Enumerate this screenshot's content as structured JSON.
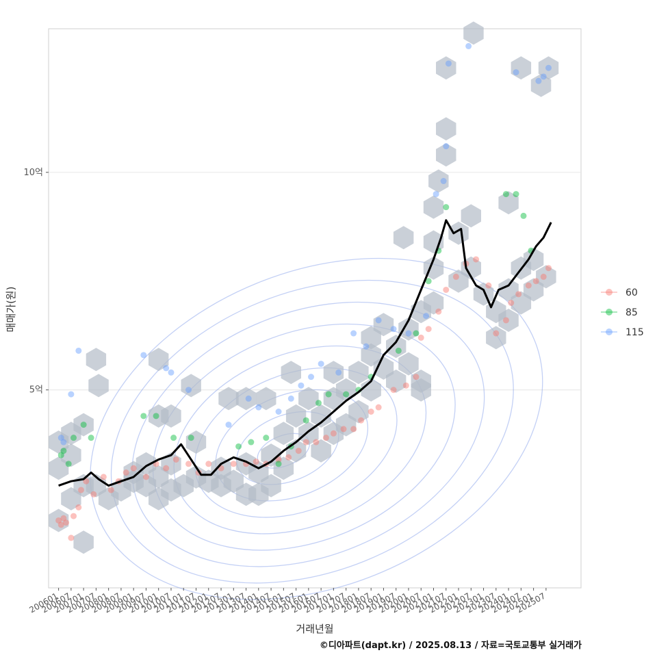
{
  "chart_data": {
    "type": "scatter",
    "xlabel": "거래년월",
    "ylabel": "매매가(원)",
    "caption": "©디아파트(dapt.kr) / 2025.08.13 / 자료=국토교통부 실거래가",
    "ylim": [
      0.45,
      13.3
    ],
    "y_unit": "억",
    "y_ticks": [
      {
        "value": 5,
        "label": "5억"
      },
      {
        "value": 10,
        "label": "10억"
      }
    ],
    "x_ticks": [
      "200601",
      "200607",
      "200701",
      "200707",
      "200801",
      "200807",
      "200901",
      "200907",
      "201001",
      "201007",
      "201101",
      "201107",
      "201201",
      "201207",
      "201301",
      "201307",
      "201401",
      "201407",
      "201501",
      "201507",
      "201601",
      "201607",
      "201701",
      "201707",
      "201801",
      "201807",
      "201901",
      "201907",
      "202001",
      "202007",
      "202101",
      "202107",
      "202201",
      "202207",
      "202301",
      "202307",
      "202401",
      "202407",
      "202501",
      "202507"
    ],
    "grid": true,
    "legend_position": "right",
    "colors": {
      "60": "#f8766d",
      "85": "#00ba38",
      "115": "#619cff",
      "trend": "#000000",
      "hex": "#b4bcc8",
      "contour": "#7a96e8"
    },
    "series": [
      {
        "name": "60",
        "points": [
          [
            2006.0,
            2.0
          ],
          [
            2006.1,
            1.9
          ],
          [
            2006.2,
            2.05
          ],
          [
            2006.3,
            1.95
          ],
          [
            2006.6,
            2.1
          ],
          [
            2006.8,
            2.3
          ],
          [
            2006.5,
            1.6
          ],
          [
            2006.9,
            2.7
          ],
          [
            2007.1,
            2.9
          ],
          [
            2007.4,
            2.6
          ],
          [
            2007.8,
            3.0
          ],
          [
            2008.1,
            2.7
          ],
          [
            2008.4,
            2.9
          ],
          [
            2008.7,
            3.1
          ],
          [
            2009.0,
            3.2
          ],
          [
            2009.5,
            3.0
          ],
          [
            2009.9,
            3.3
          ],
          [
            2010.3,
            3.2
          ],
          [
            2010.7,
            3.4
          ],
          [
            2011.2,
            3.3
          ],
          [
            2011.6,
            3.1
          ],
          [
            2012.0,
            3.3
          ],
          [
            2012.5,
            3.2
          ],
          [
            2013.0,
            3.3
          ],
          [
            2013.5,
            3.3
          ],
          [
            2013.9,
            3.35
          ],
          [
            2014.3,
            3.3
          ],
          [
            2014.8,
            3.4
          ],
          [
            2015.2,
            3.45
          ],
          [
            2015.6,
            3.6
          ],
          [
            2015.9,
            3.8
          ],
          [
            2016.3,
            3.8
          ],
          [
            2016.7,
            3.9
          ],
          [
            2017.0,
            4.0
          ],
          [
            2017.4,
            4.1
          ],
          [
            2017.8,
            4.1
          ],
          [
            2018.1,
            4.3
          ],
          [
            2018.5,
            4.5
          ],
          [
            2018.8,
            4.6
          ],
          [
            2019.4,
            5.0
          ],
          [
            2019.9,
            5.1
          ],
          [
            2020.3,
            5.3
          ],
          [
            2020.5,
            6.2
          ],
          [
            2020.8,
            6.4
          ],
          [
            2021.2,
            6.8
          ],
          [
            2021.5,
            7.3
          ],
          [
            2021.9,
            7.6
          ],
          [
            2022.3,
            7.9
          ],
          [
            2022.7,
            8.0
          ],
          [
            2023.2,
            7.4
          ],
          [
            2023.5,
            6.3
          ],
          [
            2023.9,
            6.6
          ],
          [
            2024.1,
            7.0
          ],
          [
            2024.4,
            7.2
          ],
          [
            2024.8,
            7.4
          ],
          [
            2025.1,
            7.5
          ],
          [
            2025.4,
            7.6
          ],
          [
            2025.6,
            7.8
          ]
        ]
      },
      {
        "name": "85",
        "points": [
          [
            2006.1,
            3.5
          ],
          [
            2006.2,
            3.6
          ],
          [
            2006.4,
            3.3
          ],
          [
            2006.6,
            3.9
          ],
          [
            2007.0,
            4.2
          ],
          [
            2007.3,
            3.9
          ],
          [
            2009.4,
            4.4
          ],
          [
            2009.9,
            4.4
          ],
          [
            2010.6,
            3.9
          ],
          [
            2011.3,
            3.9
          ],
          [
            2013.2,
            3.7
          ],
          [
            2013.7,
            3.8
          ],
          [
            2014.3,
            3.9
          ],
          [
            2014.8,
            3.3
          ],
          [
            2015.3,
            3.7
          ],
          [
            2015.9,
            4.3
          ],
          [
            2016.4,
            4.7
          ],
          [
            2016.8,
            4.9
          ],
          [
            2017.5,
            4.9
          ],
          [
            2018.0,
            5.0
          ],
          [
            2018.5,
            5.3
          ],
          [
            2019.6,
            5.9
          ],
          [
            2020.3,
            6.3
          ],
          [
            2020.8,
            7.5
          ],
          [
            2021.2,
            8.2
          ],
          [
            2021.5,
            9.2
          ],
          [
            2023.9,
            9.5
          ],
          [
            2024.3,
            9.5
          ],
          [
            2024.6,
            9.0
          ],
          [
            2024.9,
            8.2
          ]
        ]
      },
      {
        "name": "115",
        "points": [
          [
            2006.1,
            3.9
          ],
          [
            2006.2,
            3.8
          ],
          [
            2006.5,
            4.9
          ],
          [
            2006.8,
            5.9
          ],
          [
            2009.4,
            5.8
          ],
          [
            2010.3,
            5.5
          ],
          [
            2010.5,
            5.4
          ],
          [
            2011.2,
            5.0
          ],
          [
            2012.8,
            4.2
          ],
          [
            2013.6,
            4.8
          ],
          [
            2014.0,
            4.6
          ],
          [
            2014.8,
            4.5
          ],
          [
            2015.3,
            4.8
          ],
          [
            2015.7,
            5.1
          ],
          [
            2016.1,
            5.3
          ],
          [
            2016.5,
            5.6
          ],
          [
            2017.2,
            5.4
          ],
          [
            2017.8,
            6.3
          ],
          [
            2018.3,
            6.0
          ],
          [
            2018.8,
            6.6
          ],
          [
            2019.4,
            6.4
          ],
          [
            2020.0,
            6.3
          ],
          [
            2020.7,
            6.7
          ],
          [
            2021.1,
            9.5
          ],
          [
            2021.4,
            9.8
          ],
          [
            2021.5,
            10.6
          ],
          [
            2021.6,
            12.5
          ],
          [
            2022.4,
            12.9
          ],
          [
            2024.3,
            12.3
          ],
          [
            2025.2,
            12.1
          ],
          [
            2025.4,
            12.2
          ],
          [
            2025.6,
            12.4
          ]
        ]
      }
    ],
    "trend": [
      [
        2006.0,
        2.8
      ],
      [
        2006.5,
        2.9
      ],
      [
        2007.0,
        2.95
      ],
      [
        2007.3,
        3.1
      ],
      [
        2007.6,
        2.95
      ],
      [
        2008.0,
        2.8
      ],
      [
        2008.5,
        2.9
      ],
      [
        2009.0,
        3.0
      ],
      [
        2009.5,
        3.25
      ],
      [
        2010.0,
        3.4
      ],
      [
        2010.5,
        3.5
      ],
      [
        2010.9,
        3.75
      ],
      [
        2011.3,
        3.4
      ],
      [
        2011.7,
        3.05
      ],
      [
        2012.1,
        3.05
      ],
      [
        2012.5,
        3.3
      ],
      [
        2013.0,
        3.45
      ],
      [
        2013.5,
        3.35
      ],
      [
        2014.0,
        3.2
      ],
      [
        2014.5,
        3.35
      ],
      [
        2015.0,
        3.6
      ],
      [
        2015.5,
        3.8
      ],
      [
        2016.0,
        4.05
      ],
      [
        2016.5,
        4.25
      ],
      [
        2017.0,
        4.5
      ],
      [
        2017.5,
        4.75
      ],
      [
        2018.0,
        4.95
      ],
      [
        2018.5,
        5.2
      ],
      [
        2019.0,
        5.8
      ],
      [
        2019.5,
        6.1
      ],
      [
        2020.0,
        6.6
      ],
      [
        2020.5,
        7.3
      ],
      [
        2021.0,
        8.0
      ],
      [
        2021.3,
        8.5
      ],
      [
        2021.5,
        8.9
      ],
      [
        2021.8,
        8.6
      ],
      [
        2022.1,
        8.7
      ],
      [
        2022.3,
        7.8
      ],
      [
        2022.7,
        7.4
      ],
      [
        2023.0,
        7.3
      ],
      [
        2023.3,
        6.9
      ],
      [
        2023.6,
        7.3
      ],
      [
        2024.0,
        7.4
      ],
      [
        2024.4,
        7.7
      ],
      [
        2024.8,
        8.0
      ],
      [
        2025.1,
        8.3
      ],
      [
        2025.4,
        8.5
      ],
      [
        2025.7,
        8.85
      ]
    ],
    "hex_bins": [
      [
        2006.0,
        2.0
      ],
      [
        2006.0,
        3.8
      ],
      [
        2006.0,
        3.2
      ],
      [
        2006.5,
        3.5
      ],
      [
        2006.5,
        4.0
      ],
      [
        2006.5,
        2.5
      ],
      [
        2007.0,
        2.8
      ],
      [
        2007.0,
        1.5
      ],
      [
        2007.0,
        4.2
      ],
      [
        2007.5,
        2.8
      ],
      [
        2008.0,
        2.5
      ],
      [
        2008.5,
        2.7
      ],
      [
        2009.0,
        2.9
      ],
      [
        2009.0,
        3.1
      ],
      [
        2009.5,
        2.8
      ],
      [
        2009.5,
        3.3
      ],
      [
        2010.0,
        3.0
      ],
      [
        2010.0,
        2.5
      ],
      [
        2010.5,
        2.7
      ],
      [
        2010.5,
        3.3
      ],
      [
        2011.0,
        2.8
      ],
      [
        2011.5,
        3.0
      ],
      [
        2011.5,
        3.8
      ],
      [
        2012.0,
        2.9
      ],
      [
        2012.5,
        2.8
      ],
      [
        2012.5,
        3.2
      ],
      [
        2013.0,
        2.9
      ],
      [
        2013.5,
        2.6
      ],
      [
        2013.5,
        3.3
      ],
      [
        2014.0,
        2.6
      ],
      [
        2014.0,
        3.1
      ],
      [
        2014.5,
        2.8
      ],
      [
        2014.5,
        3.5
      ],
      [
        2015.0,
        3.2
      ],
      [
        2015.0,
        4.0
      ],
      [
        2015.5,
        3.6
      ],
      [
        2015.5,
        4.4
      ],
      [
        2016.0,
        4.0
      ],
      [
        2016.0,
        4.8
      ],
      [
        2016.5,
        3.6
      ],
      [
        2016.5,
        4.4
      ],
      [
        2017.0,
        4.0
      ],
      [
        2017.0,
        4.8
      ],
      [
        2017.5,
        4.2
      ],
      [
        2017.5,
        5.0
      ],
      [
        2018.0,
        4.5
      ],
      [
        2018.0,
        5.4
      ],
      [
        2018.5,
        5.0
      ],
      [
        2018.5,
        5.8
      ],
      [
        2019.0,
        5.5
      ],
      [
        2019.5,
        5.2
      ],
      [
        2019.5,
        6.0
      ],
      [
        2020.0,
        5.6
      ],
      [
        2020.0,
        6.4
      ],
      [
        2020.5,
        5.2
      ],
      [
        2020.5,
        6.8
      ],
      [
        2021.0,
        7.0
      ],
      [
        2021.0,
        7.8
      ],
      [
        2021.0,
        8.4
      ],
      [
        2021.0,
        9.2
      ],
      [
        2021.2,
        9.8
      ],
      [
        2021.5,
        10.4
      ],
      [
        2021.5,
        11.0
      ],
      [
        2021.5,
        12.4
      ],
      [
        2022.0,
        7.5
      ],
      [
        2022.0,
        8.6
      ],
      [
        2022.5,
        7.8
      ],
      [
        2022.5,
        9.0
      ],
      [
        2022.6,
        13.2
      ],
      [
        2023.0,
        7.2
      ],
      [
        2023.5,
        6.2
      ],
      [
        2023.5,
        6.8
      ],
      [
        2024.0,
        6.6
      ],
      [
        2024.0,
        7.3
      ],
      [
        2024.0,
        9.3
      ],
      [
        2024.5,
        7.0
      ],
      [
        2024.5,
        7.8
      ],
      [
        2024.5,
        12.4
      ],
      [
        2025.0,
        7.3
      ],
      [
        2025.0,
        8.0
      ],
      [
        2025.3,
        12.0
      ],
      [
        2025.5,
        7.6
      ],
      [
        2025.6,
        12.4
      ],
      [
        2007.5,
        5.7
      ],
      [
        2007.6,
        5.1
      ],
      [
        2010.0,
        5.7
      ],
      [
        2010.5,
        4.4
      ],
      [
        2010.0,
        4.4
      ],
      [
        2011.3,
        5.1
      ],
      [
        2012.8,
        4.8
      ],
      [
        2013.5,
        4.8
      ],
      [
        2014.3,
        4.8
      ],
      [
        2015.3,
        5.4
      ],
      [
        2017.0,
        5.4
      ],
      [
        2018.5,
        6.2
      ],
      [
        2019.0,
        6.5
      ],
      [
        2019.8,
        8.5
      ],
      [
        2020.5,
        5.0
      ]
    ]
  }
}
